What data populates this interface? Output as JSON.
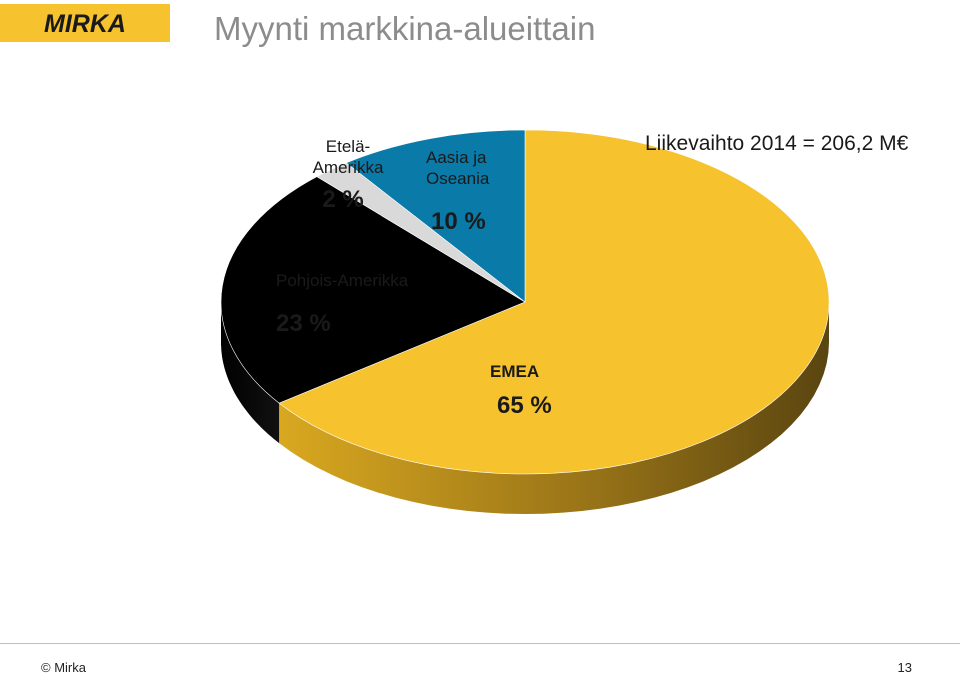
{
  "header": {
    "logo_text": "MIRKA",
    "title": "Myynti markkina-alueittain"
  },
  "colors": {
    "brand": "#f6c22d",
    "title": "#8c8c8c"
  },
  "chart_data": {
    "type": "pie",
    "style": "3d",
    "annotation": "Liikevaihto 2014 = 206,2 M€",
    "slices": [
      {
        "name": "EMEA",
        "value": 65,
        "value_label": "65 %",
        "color": "#f6c22d"
      },
      {
        "name": "Pohjois-Amerikka",
        "value": 23,
        "value_label": "23 %",
        "color": "#000000"
      },
      {
        "name": "Etelä-\nAmerikka",
        "value": 2,
        "value_label": "2 %",
        "color": "#d9d9d9"
      },
      {
        "name": "Aasia ja\nOseania",
        "value": 10,
        "value_label": "10 %",
        "color": "#0a7aa8"
      }
    ]
  },
  "footer": {
    "copyright": "© Mirka",
    "page_number": "13"
  }
}
